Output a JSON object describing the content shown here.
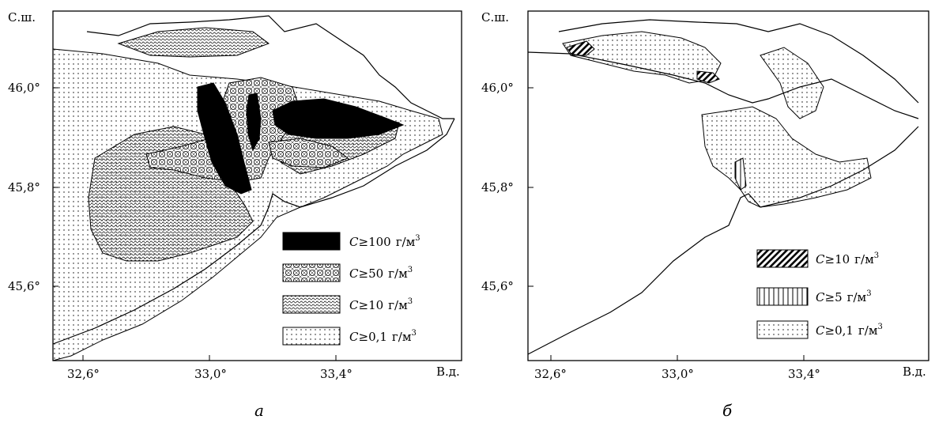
{
  "panels": [
    {
      "caption": "а",
      "lat_axis_label": "С.ш.",
      "lon_axis_label": "В.д.",
      "lat_ticks": [
        "46,0°",
        "45,8°",
        "45,6°"
      ],
      "lon_ticks": [
        "32,6°",
        "33,0°",
        "33,4°"
      ],
      "legend": [
        {
          "sym": "C",
          "rel": "≥",
          "value": "100",
          "unit": "г/м",
          "exp": "3",
          "pattern": "solid-black"
        },
        {
          "sym": "C",
          "rel": "≥",
          "value": "50",
          "unit": "г/м",
          "exp": "3",
          "pattern": "circles"
        },
        {
          "sym": "C",
          "rel": "≥",
          "value": "10",
          "unit": "г/м",
          "exp": "3",
          "pattern": "dense-wave"
        },
        {
          "sym": "C",
          "rel": "≥",
          "value": "0,1",
          "unit": "г/м",
          "exp": "3",
          "pattern": "sparse-dots"
        }
      ]
    },
    {
      "caption": "б",
      "lat_axis_label": "С.ш.",
      "lon_axis_label": "В.д.",
      "lat_ticks": [
        "46,0°",
        "45,8°",
        "45,6°"
      ],
      "lon_ticks": [
        "32,6°",
        "33,0°",
        "33,4°"
      ],
      "legend": [
        {
          "sym": "C",
          "rel": "≥",
          "value": "10",
          "unit": "г/м",
          "exp": "3",
          "pattern": "diagonal-stripes"
        },
        {
          "sym": "C",
          "rel": "≥",
          "value": "5",
          "unit": "г/м",
          "exp": "3",
          "pattern": "vertical-lines"
        },
        {
          "sym": "C",
          "rel": "≥",
          "value": "0,1",
          "unit": "г/м",
          "exp": "3",
          "pattern": "sparse-dots"
        }
      ]
    }
  ]
}
